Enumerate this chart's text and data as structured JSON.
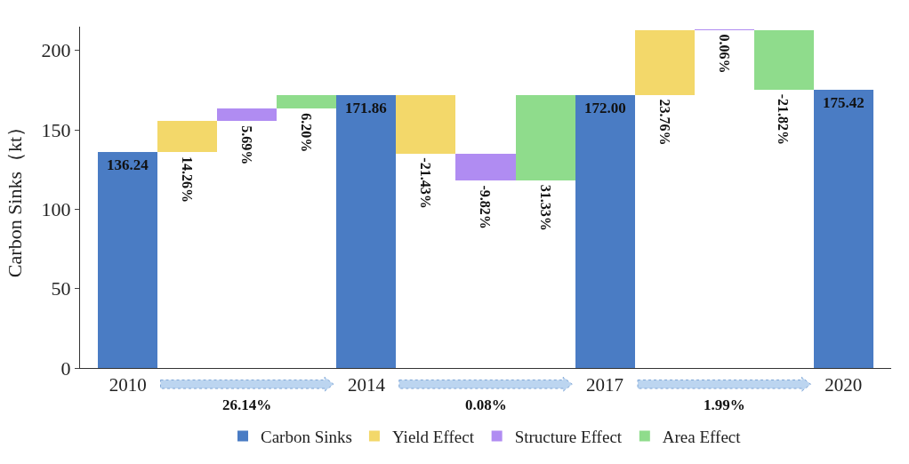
{
  "chart_data": {
    "type": "bar",
    "ylabel": "Carbon Sinks（kt）",
    "categories": [
      "2010",
      null,
      null,
      null,
      "2014",
      null,
      null,
      null,
      "2017",
      null,
      null,
      null,
      "2020"
    ],
    "series": [
      {
        "name": "Carbon Sinks",
        "color": "#4a7cc4",
        "values": [
          136.24,
          null,
          null,
          null,
          171.86,
          null,
          null,
          null,
          172.0,
          null,
          null,
          null,
          175.42
        ],
        "base": [
          0,
          null,
          null,
          null,
          0,
          null,
          null,
          null,
          0,
          null,
          null,
          null,
          0
        ],
        "value_labels": [
          "136.24",
          null,
          null,
          null,
          "171.86",
          null,
          null,
          null,
          "172.00",
          null,
          null,
          null,
          "175.42"
        ]
      },
      {
        "name": "Yield Effect",
        "color": "#f3d86a",
        "values": [
          null,
          19.4,
          null,
          null,
          null,
          -36.8,
          null,
          null,
          null,
          40.9,
          null,
          null,
          null
        ],
        "base": [
          null,
          136.24,
          null,
          null,
          null,
          171.86,
          null,
          null,
          null,
          172.0,
          null,
          null,
          null
        ]
      },
      {
        "name": "Structure Effect",
        "color": "#b08cf2",
        "values": [
          null,
          null,
          7.8,
          null,
          null,
          null,
          -16.9,
          null,
          null,
          null,
          0.1,
          null,
          null
        ],
        "base": [
          null,
          null,
          155.6,
          null,
          null,
          null,
          135.1,
          null,
          null,
          null,
          212.9,
          null,
          null
        ]
      },
      {
        "name": "Area Effect",
        "color": "#8fdc8c",
        "values": [
          null,
          null,
          null,
          8.5,
          null,
          null,
          null,
          53.8,
          null,
          null,
          null,
          -37.5,
          null
        ],
        "base": [
          null,
          null,
          null,
          163.4,
          null,
          null,
          null,
          118.2,
          null,
          null,
          null,
          213.0,
          null
        ]
      }
    ],
    "annotations": [
      "14.26%",
      "5.69%",
      "6.20%",
      "-21.43%",
      "-9.82%",
      "31.33%",
      "23.76%",
      "0.06%",
      "-21.82%",
      "26.14%",
      "0.08%",
      "1.99%"
    ],
    "ylim": [
      0,
      215
    ],
    "yticks": [
      0,
      50,
      100,
      150,
      200
    ],
    "legend": "bottom"
  }
}
